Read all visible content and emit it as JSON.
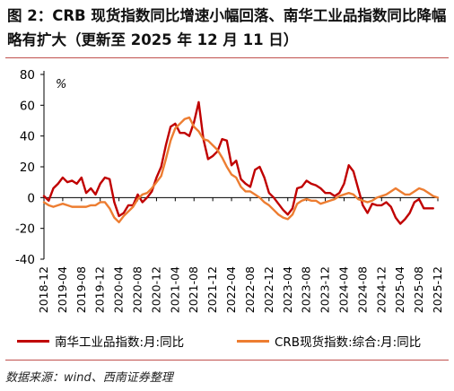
{
  "header": {
    "title": "图 2：CRB 现货指数同比增速小幅回落、南华工业品指数同比降幅略有扩大（更新至 2025 年 12 月 11 日）"
  },
  "source": "数据来源：wind、西南证券整理",
  "colors": {
    "series_1": "#c00000",
    "series_2": "#ed7d31",
    "axis": "#000000"
  },
  "chart_data": {
    "type": "line",
    "ylabel": "%",
    "ylim": [
      -40,
      80
    ],
    "yticks": [
      -40,
      -20,
      0,
      20,
      40,
      60,
      80
    ],
    "xlim": [
      "2018-12",
      "2025-12"
    ],
    "xtick_labels": [
      "2018-12",
      "2019-04",
      "2019-08",
      "2019-12",
      "2020-04",
      "2020-08",
      "2020-12",
      "2021-04",
      "2021-08",
      "2021-12",
      "2022-04",
      "2022-08",
      "2022-12",
      "2023-04",
      "2023-08",
      "2023-12",
      "2024-04",
      "2024-08",
      "2024-12",
      "2025-04",
      "2025-08",
      "2025-12"
    ],
    "grid": false,
    "legend_position": "bottom",
    "series": [
      {
        "name": "南华工业品指数:月:同比",
        "color": "#c00000",
        "points": [
          [
            "2018-12",
            1
          ],
          [
            "2019-01",
            -2
          ],
          [
            "2019-02",
            6
          ],
          [
            "2019-03",
            9
          ],
          [
            "2019-04",
            13
          ],
          [
            "2019-05",
            10
          ],
          [
            "2019-06",
            11
          ],
          [
            "2019-07",
            9
          ],
          [
            "2019-08",
            13
          ],
          [
            "2019-09",
            3
          ],
          [
            "2019-10",
            6
          ],
          [
            "2019-11",
            2
          ],
          [
            "2019-12",
            9
          ],
          [
            "2020-01",
            13
          ],
          [
            "2020-02",
            12
          ],
          [
            "2020-03",
            -3
          ],
          [
            "2020-04",
            -12
          ],
          [
            "2020-05",
            -10
          ],
          [
            "2020-06",
            -5
          ],
          [
            "2020-07",
            -5
          ],
          [
            "2020-08",
            2
          ],
          [
            "2020-09",
            -3
          ],
          [
            "2020-10",
            0
          ],
          [
            "2020-11",
            4
          ],
          [
            "2020-12",
            13
          ],
          [
            "2021-01",
            20
          ],
          [
            "2021-02",
            34
          ],
          [
            "2021-03",
            46
          ],
          [
            "2021-04",
            48
          ],
          [
            "2021-05",
            42
          ],
          [
            "2021-06",
            42
          ],
          [
            "2021-07",
            40
          ],
          [
            "2021-08",
            49
          ],
          [
            "2021-09",
            62
          ],
          [
            "2021-10",
            38
          ],
          [
            "2021-11",
            25
          ],
          [
            "2021-12",
            27
          ],
          [
            "2022-01",
            30
          ],
          [
            "2022-02",
            38
          ],
          [
            "2022-03",
            37
          ],
          [
            "2022-04",
            21
          ],
          [
            "2022-05",
            24
          ],
          [
            "2022-06",
            12
          ],
          [
            "2022-07",
            9
          ],
          [
            "2022-08",
            7
          ],
          [
            "2022-09",
            18
          ],
          [
            "2022-10",
            20
          ],
          [
            "2022-11",
            13
          ],
          [
            "2022-12",
            3
          ],
          [
            "2023-01",
            0
          ],
          [
            "2023-02",
            -4
          ],
          [
            "2023-03",
            -8
          ],
          [
            "2023-04",
            -11
          ],
          [
            "2023-05",
            -7
          ],
          [
            "2023-06",
            6
          ],
          [
            "2023-07",
            7
          ],
          [
            "2023-08",
            11
          ],
          [
            "2023-09",
            9
          ],
          [
            "2023-10",
            8
          ],
          [
            "2023-11",
            6
          ],
          [
            "2023-12",
            3
          ],
          [
            "2024-01",
            3
          ],
          [
            "2024-02",
            1
          ],
          [
            "2024-03",
            3
          ],
          [
            "2024-04",
            9
          ],
          [
            "2024-05",
            21
          ],
          [
            "2024-06",
            17
          ],
          [
            "2024-07",
            6
          ],
          [
            "2024-08",
            -5
          ],
          [
            "2024-09",
            -10
          ],
          [
            "2024-10",
            -4
          ],
          [
            "2024-11",
            -5
          ],
          [
            "2024-12",
            -5
          ],
          [
            "2025-01",
            -3
          ],
          [
            "2025-02",
            -6
          ],
          [
            "2025-03",
            -13
          ],
          [
            "2025-04",
            -17
          ],
          [
            "2025-05",
            -14
          ],
          [
            "2025-06",
            -10
          ],
          [
            "2025-07",
            -3
          ],
          [
            "2025-08",
            -1
          ],
          [
            "2025-09",
            -7
          ],
          [
            "2025-10",
            -7
          ],
          [
            "2025-11",
            -7
          ]
        ]
      },
      {
        "name": "CRB现货指数:综合:月:同比",
        "color": "#ed7d31",
        "points": [
          [
            "2018-12",
            -3
          ],
          [
            "2019-01",
            -5
          ],
          [
            "2019-02",
            -6
          ],
          [
            "2019-03",
            -5
          ],
          [
            "2019-04",
            -4
          ],
          [
            "2019-05",
            -5
          ],
          [
            "2019-06",
            -6
          ],
          [
            "2019-07",
            -6
          ],
          [
            "2019-08",
            -6
          ],
          [
            "2019-09",
            -6
          ],
          [
            "2019-10",
            -5
          ],
          [
            "2019-11",
            -5
          ],
          [
            "2019-12",
            -3
          ],
          [
            "2020-01",
            -3
          ],
          [
            "2020-02",
            -7
          ],
          [
            "2020-03",
            -13
          ],
          [
            "2020-04",
            -16
          ],
          [
            "2020-05",
            -12
          ],
          [
            "2020-06",
            -9
          ],
          [
            "2020-07",
            -6
          ],
          [
            "2020-08",
            -1
          ],
          [
            "2020-09",
            2
          ],
          [
            "2020-10",
            3
          ],
          [
            "2020-11",
            6
          ],
          [
            "2020-12",
            10
          ],
          [
            "2021-01",
            14
          ],
          [
            "2021-02",
            25
          ],
          [
            "2021-03",
            37
          ],
          [
            "2021-04",
            45
          ],
          [
            "2021-05",
            48
          ],
          [
            "2021-06",
            51
          ],
          [
            "2021-07",
            52
          ],
          [
            "2021-08",
            46
          ],
          [
            "2021-09",
            43
          ],
          [
            "2021-10",
            38
          ],
          [
            "2021-11",
            37
          ],
          [
            "2021-12",
            34
          ],
          [
            "2022-01",
            31
          ],
          [
            "2022-02",
            26
          ],
          [
            "2022-03",
            20
          ],
          [
            "2022-04",
            15
          ],
          [
            "2022-05",
            13
          ],
          [
            "2022-06",
            7
          ],
          [
            "2022-07",
            4
          ],
          [
            "2022-08",
            4
          ],
          [
            "2022-09",
            2
          ],
          [
            "2022-10",
            0
          ],
          [
            "2022-11",
            -3
          ],
          [
            "2022-12",
            -5
          ],
          [
            "2023-01",
            -8
          ],
          [
            "2023-02",
            -11
          ],
          [
            "2023-03",
            -13
          ],
          [
            "2023-04",
            -14
          ],
          [
            "2023-05",
            -11
          ],
          [
            "2023-06",
            -4
          ],
          [
            "2023-07",
            -2
          ],
          [
            "2023-08",
            -1
          ],
          [
            "2023-09",
            -2
          ],
          [
            "2023-10",
            -2
          ],
          [
            "2023-11",
            -4
          ],
          [
            "2023-12",
            -3
          ],
          [
            "2024-01",
            -2
          ],
          [
            "2024-02",
            -1
          ],
          [
            "2024-03",
            1
          ],
          [
            "2024-04",
            2
          ],
          [
            "2024-05",
            3
          ],
          [
            "2024-06",
            2
          ],
          [
            "2024-07",
            -1
          ],
          [
            "2024-08",
            -2
          ],
          [
            "2024-09",
            -3
          ],
          [
            "2024-10",
            -2
          ],
          [
            "2024-11",
            0
          ],
          [
            "2024-12",
            1
          ],
          [
            "2025-01",
            2
          ],
          [
            "2025-02",
            4
          ],
          [
            "2025-03",
            6
          ],
          [
            "2025-04",
            4
          ],
          [
            "2025-05",
            2
          ],
          [
            "2025-06",
            2
          ],
          [
            "2025-07",
            4
          ],
          [
            "2025-08",
            6
          ],
          [
            "2025-09",
            5
          ],
          [
            "2025-10",
            3
          ],
          [
            "2025-11",
            1
          ],
          [
            "2025-12",
            0
          ]
        ]
      }
    ]
  }
}
